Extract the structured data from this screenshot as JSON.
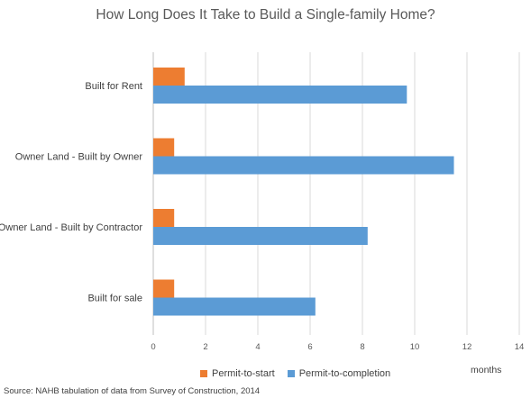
{
  "chart_data": {
    "type": "bar",
    "orientation": "horizontal",
    "title": "How Long Does It Take to Build a Single-family Home?",
    "categories": [
      "Built for Rent",
      "Owner Land - Built by Owner",
      "Owner Land - Built by Contractor",
      "Built for sale"
    ],
    "series": [
      {
        "name": "Permit-to-start",
        "values": [
          1.2,
          0.8,
          0.8,
          0.8
        ],
        "color": "#ED7D31"
      },
      {
        "name": "Permit-to-completion",
        "values": [
          9.7,
          11.5,
          8.2,
          6.2
        ],
        "color": "#5B9BD5"
      }
    ],
    "xlim": [
      0,
      14
    ],
    "xticks": [
      "0",
      "2",
      "4",
      "6",
      "8",
      "10",
      "12",
      "14"
    ],
    "xlabel": "months",
    "grid": "vertical",
    "legend_position": "bottom",
    "source": "Source: NAHB tabulation of data from Survey of Construction, 2014"
  }
}
